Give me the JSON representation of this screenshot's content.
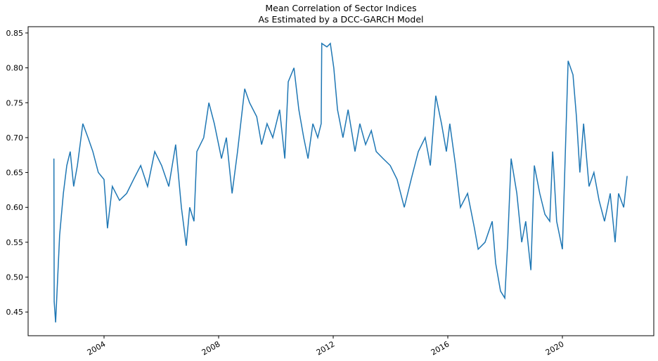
{
  "chart_data": {
    "type": "line",
    "title": "Mean Correlation of Sector Indices",
    "subtitle": "As Estimated by a DCC-GARCH Model",
    "x": [
      2002.25,
      2002.26,
      2002.31,
      2002.45,
      2002.58,
      2002.7,
      2002.82,
      2002.94,
      2003.07,
      2003.26,
      2003.44,
      2003.61,
      2003.8,
      2004.0,
      2004.12,
      2004.29,
      2004.54,
      2004.79,
      2005.03,
      2005.28,
      2005.52,
      2005.77,
      2006.01,
      2006.26,
      2006.5,
      2006.7,
      2006.87,
      2006.99,
      2007.14,
      2007.24,
      2007.48,
      2007.66,
      2007.85,
      2008.1,
      2008.27,
      2008.47,
      2008.66,
      2008.91,
      2009.08,
      2009.33,
      2009.5,
      2009.69,
      2009.89,
      2010.13,
      2010.31,
      2010.43,
      2010.63,
      2010.8,
      2010.97,
      2011.12,
      2011.29,
      2011.46,
      2011.58,
      2011.6,
      2011.78,
      2011.9,
      2012.02,
      2012.15,
      2012.34,
      2012.52,
      2012.76,
      2012.93,
      2013.13,
      2013.33,
      2013.5,
      2013.74,
      2013.99,
      2014.23,
      2014.48,
      2014.72,
      2014.97,
      2015.21,
      2015.39,
      2015.58,
      2015.78,
      2015.95,
      2016.07,
      2016.27,
      2016.44,
      2016.69,
      2016.93,
      2017.06,
      2017.3,
      2017.55,
      2017.67,
      2017.84,
      2017.99,
      2018.09,
      2018.21,
      2018.41,
      2018.58,
      2018.72,
      2018.9,
      2019.02,
      2019.21,
      2019.39,
      2019.56,
      2019.66,
      2019.8,
      2020.0,
      2020.2,
      2020.37,
      2020.49,
      2020.61,
      2020.74,
      2020.93,
      2021.1,
      2021.28,
      2021.47,
      2021.67,
      2021.84,
      2021.96,
      2022.14,
      2022.26
    ],
    "series": [
      {
        "color": "#1f77b4",
        "values": [
          0.67,
          0.465,
          0.435,
          0.56,
          0.62,
          0.66,
          0.68,
          0.63,
          0.66,
          0.72,
          0.7,
          0.68,
          0.65,
          0.64,
          0.57,
          0.63,
          0.61,
          0.62,
          0.64,
          0.66,
          0.63,
          0.68,
          0.66,
          0.63,
          0.69,
          0.6,
          0.545,
          0.6,
          0.58,
          0.68,
          0.7,
          0.75,
          0.72,
          0.67,
          0.7,
          0.62,
          0.68,
          0.77,
          0.75,
          0.73,
          0.69,
          0.72,
          0.7,
          0.74,
          0.67,
          0.78,
          0.8,
          0.74,
          0.7,
          0.67,
          0.72,
          0.7,
          0.72,
          0.835,
          0.83,
          0.835,
          0.8,
          0.74,
          0.7,
          0.74,
          0.68,
          0.72,
          0.69,
          0.71,
          0.68,
          0.67,
          0.66,
          0.64,
          0.6,
          0.64,
          0.68,
          0.7,
          0.66,
          0.76,
          0.72,
          0.68,
          0.72,
          0.66,
          0.6,
          0.62,
          0.57,
          0.54,
          0.55,
          0.58,
          0.52,
          0.48,
          0.47,
          0.55,
          0.67,
          0.62,
          0.55,
          0.58,
          0.51,
          0.66,
          0.62,
          0.59,
          0.58,
          0.68,
          0.58,
          0.54,
          0.81,
          0.79,
          0.73,
          0.65,
          0.72,
          0.63,
          0.65,
          0.61,
          0.58,
          0.62,
          0.55,
          0.62,
          0.6,
          0.645
        ]
      }
    ],
    "xlim": [
      2001.35,
      2023.19
    ],
    "xticks": [
      2004,
      2008,
      2012,
      2016,
      2020
    ],
    "ylim": [
      0.416,
      0.859
    ],
    "yticks": [
      0.45,
      {
        "value": 0.5,
        "label": "0.50"
      },
      0.55,
      {
        "value": 0.6,
        "label": "0.60"
      },
      0.65,
      {
        "value": 0.7,
        "label": "0.70"
      },
      0.75,
      {
        "value": 0.8,
        "label": "0.80"
      },
      0.85
    ],
    "grid": false
  }
}
